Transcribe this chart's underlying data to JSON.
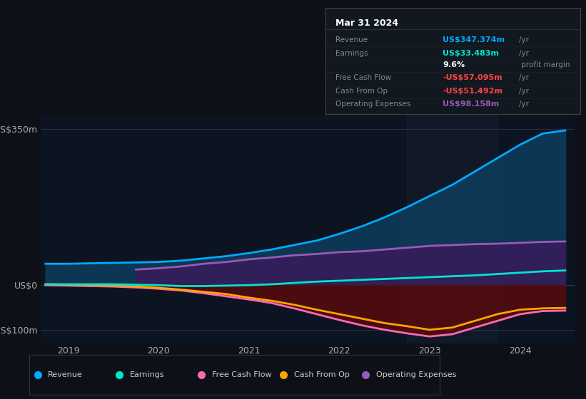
{
  "background_color": "#0d1117",
  "chart_bg": "#0d1421",
  "xlim": [
    2018.7,
    2024.6
  ],
  "ylim": [
    -130,
    380
  ],
  "yticks": [
    -100,
    0,
    350
  ],
  "ytick_labels": [
    "-US$100m",
    "US$0",
    "US$350m"
  ],
  "xticks": [
    2019,
    2020,
    2021,
    2022,
    2023,
    2024
  ],
  "series": {
    "Revenue": {
      "color": "#00aaff",
      "fill_color": "#0d3d5e",
      "x": [
        2018.75,
        2019.0,
        2019.25,
        2019.5,
        2019.75,
        2020.0,
        2020.25,
        2020.5,
        2020.75,
        2021.0,
        2021.25,
        2021.5,
        2021.75,
        2022.0,
        2022.25,
        2022.5,
        2022.75,
        2023.0,
        2023.25,
        2023.5,
        2023.75,
        2024.0,
        2024.25,
        2024.5
      ],
      "y": [
        48,
        48,
        49,
        50,
        51,
        52,
        55,
        60,
        65,
        72,
        80,
        90,
        100,
        115,
        132,
        152,
        175,
        200,
        225,
        255,
        285,
        315,
        340,
        347
      ]
    },
    "Earnings": {
      "color": "#00e5cc",
      "x": [
        2018.75,
        2019.0,
        2019.25,
        2019.5,
        2019.75,
        2020.0,
        2020.25,
        2020.5,
        2020.75,
        2021.0,
        2021.25,
        2021.5,
        2021.75,
        2022.0,
        2022.25,
        2022.5,
        2022.75,
        2023.0,
        2023.25,
        2023.5,
        2023.75,
        2024.0,
        2024.25,
        2024.5
      ],
      "y": [
        2,
        2,
        2,
        2,
        1,
        0,
        -2,
        -2,
        -1,
        0,
        2,
        5,
        8,
        10,
        12,
        14,
        16,
        18,
        20,
        22,
        25,
        28,
        31,
        33
      ]
    },
    "Free Cash Flow": {
      "color": "#ff69b4",
      "fill_color": "#5a0a0a",
      "x": [
        2018.75,
        2019.0,
        2019.25,
        2019.5,
        2019.75,
        2020.0,
        2020.25,
        2020.5,
        2020.75,
        2021.0,
        2021.25,
        2021.5,
        2021.75,
        2022.0,
        2022.25,
        2022.5,
        2022.75,
        2023.0,
        2023.25,
        2023.5,
        2023.75,
        2024.0,
        2024.25,
        2024.5
      ],
      "y": [
        0,
        -1,
        -2,
        -3,
        -5,
        -8,
        -12,
        -18,
        -25,
        -32,
        -40,
        -52,
        -65,
        -78,
        -90,
        -100,
        -108,
        -115,
        -110,
        -95,
        -80,
        -65,
        -58,
        -57
      ]
    },
    "Cash From Op": {
      "color": "#ffa500",
      "x": [
        2018.75,
        2019.0,
        2019.25,
        2019.5,
        2019.75,
        2020.0,
        2020.25,
        2020.5,
        2020.75,
        2021.0,
        2021.25,
        2021.5,
        2021.75,
        2022.0,
        2022.25,
        2022.5,
        2022.75,
        2023.0,
        2023.25,
        2023.5,
        2023.75,
        2024.0,
        2024.25,
        2024.5
      ],
      "y": [
        2,
        1,
        0,
        -1,
        -3,
        -6,
        -10,
        -15,
        -20,
        -28,
        -35,
        -44,
        -55,
        -65,
        -75,
        -85,
        -92,
        -100,
        -95,
        -80,
        -65,
        -55,
        -52,
        -51
      ]
    },
    "Operating Expenses": {
      "color": "#9b59b6",
      "fill_color": "#3a1a5a",
      "x": [
        2019.75,
        2020.0,
        2020.25,
        2020.5,
        2020.75,
        2021.0,
        2021.25,
        2021.5,
        2021.75,
        2022.0,
        2022.25,
        2022.5,
        2022.75,
        2023.0,
        2023.25,
        2023.5,
        2023.75,
        2024.0,
        2024.25,
        2024.5
      ],
      "y": [
        35,
        38,
        42,
        48,
        52,
        58,
        62,
        67,
        70,
        74,
        76,
        80,
        84,
        88,
        90,
        92,
        93,
        95,
        97,
        98
      ]
    }
  },
  "info_box": {
    "title": "Mar 31 2024",
    "rows": [
      {
        "label": "Revenue",
        "value": "US$347.374m",
        "unit": "/yr",
        "value_color": "#00aaff"
      },
      {
        "label": "Earnings",
        "value": "US$33.483m",
        "unit": "/yr",
        "value_color": "#00e5cc"
      },
      {
        "label": "",
        "value": "9.6%",
        "unit": " profit margin",
        "value_color": "#ffffff"
      },
      {
        "label": "Free Cash Flow",
        "value": "-US$57.095m",
        "unit": "/yr",
        "value_color": "#ff4444"
      },
      {
        "label": "Cash From Op",
        "value": "-US$51.492m",
        "unit": "/yr",
        "value_color": "#ff4444"
      },
      {
        "label": "Operating Expenses",
        "value": "US$98.158m",
        "unit": "/yr",
        "value_color": "#9b59b6"
      }
    ]
  },
  "legend": [
    {
      "label": "Revenue",
      "color": "#00aaff"
    },
    {
      "label": "Earnings",
      "color": "#00e5cc"
    },
    {
      "label": "Free Cash Flow",
      "color": "#ff69b4"
    },
    {
      "label": "Cash From Op",
      "color": "#ffa500"
    },
    {
      "label": "Operating Expenses",
      "color": "#9b59b6"
    }
  ],
  "grid_color": "#2a3a4a",
  "text_color": "#aaaaaa",
  "label_color": "#cccccc"
}
